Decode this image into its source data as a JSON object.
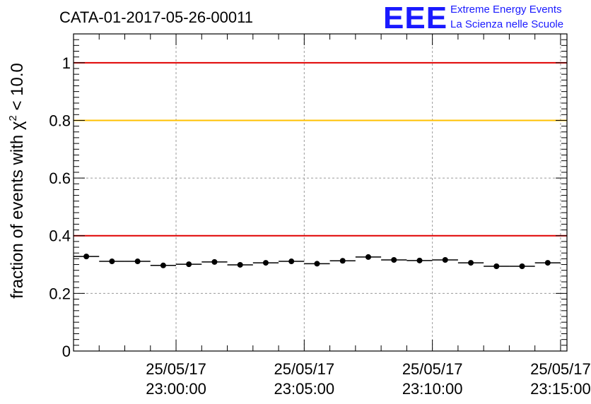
{
  "chart_data": {
    "type": "scatter",
    "title": "CATA-01-2017-05-26-00011",
    "ylabel": {
      "prefix": "fraction of events with ",
      "chi": "χ",
      "sup": "2",
      "suffix": " < 10.0"
    },
    "ylim": [
      0,
      1.1
    ],
    "y_ticks": [
      {
        "value": 0,
        "label": "0"
      },
      {
        "value": 0.2,
        "label": "0.2"
      },
      {
        "value": 0.4,
        "label": "0.4"
      },
      {
        "value": 0.6,
        "label": "0.6"
      },
      {
        "value": 0.8,
        "label": "0.8"
      },
      {
        "value": 1.0,
        "label": "1"
      }
    ],
    "xlim": [
      "2017-05-25 22:56:00",
      "2017-05-25 23:15:15"
    ],
    "x_ticks": [
      {
        "value": "2017-05-25 23:00:00",
        "date": "25/05/17",
        "time": "23:00:00"
      },
      {
        "value": "2017-05-25 23:05:00",
        "date": "25/05/17",
        "time": "23:05:00"
      },
      {
        "value": "2017-05-25 23:10:00",
        "date": "25/05/17",
        "time": "23:10:00"
      },
      {
        "value": "2017-05-25 23:15:00",
        "date": "25/05/17",
        "time": "23:15:00"
      }
    ],
    "grid": true,
    "reference_lines": [
      {
        "y": 1.0,
        "color": "#e00000"
      },
      {
        "y": 0.8,
        "color": "#ffc000"
      },
      {
        "y": 0.4,
        "color": "#e00000"
      }
    ],
    "series": [
      {
        "color": "#000000",
        "points": [
          {
            "x": "2017-05-25 22:56:30",
            "y": 0.328
          },
          {
            "x": "2017-05-25 22:57:30",
            "y": 0.311
          },
          {
            "x": "2017-05-25 22:58:30",
            "y": 0.311
          },
          {
            "x": "2017-05-25 22:59:30",
            "y": 0.297
          },
          {
            "x": "2017-05-25 23:00:30",
            "y": 0.301
          },
          {
            "x": "2017-05-25 23:01:30",
            "y": 0.309
          },
          {
            "x": "2017-05-25 23:02:30",
            "y": 0.299
          },
          {
            "x": "2017-05-25 23:03:30",
            "y": 0.306
          },
          {
            "x": "2017-05-25 23:04:30",
            "y": 0.311
          },
          {
            "x": "2017-05-25 23:05:30",
            "y": 0.303
          },
          {
            "x": "2017-05-25 23:06:30",
            "y": 0.313
          },
          {
            "x": "2017-05-25 23:07:30",
            "y": 0.326
          },
          {
            "x": "2017-05-25 23:08:30",
            "y": 0.316
          },
          {
            "x": "2017-05-25 23:09:30",
            "y": 0.314
          },
          {
            "x": "2017-05-25 23:10:30",
            "y": 0.316
          },
          {
            "x": "2017-05-25 23:11:30",
            "y": 0.306
          },
          {
            "x": "2017-05-25 23:12:30",
            "y": 0.294
          },
          {
            "x": "2017-05-25 23:13:30",
            "y": 0.294
          },
          {
            "x": "2017-05-25 23:14:30",
            "y": 0.306
          }
        ]
      }
    ]
  },
  "logo": {
    "letters": "EEE",
    "line1": "Extreme Energy Events",
    "line2": "La Scienza nelle Scuole",
    "color": "#1a1aff"
  }
}
